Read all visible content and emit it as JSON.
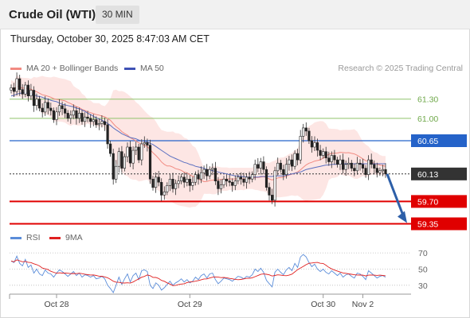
{
  "chart_data": {
    "instrument": "Crude Oil (WTI)",
    "timeframe": "30 MIN",
    "timestamp": "Thursday, October 30, 2025 8:47:03 AM CET",
    "credit": "Research © 2025 Trading Central",
    "legend_main": [
      {
        "name": "MA 20 + Bollinger Bands",
        "color": "#f28b82"
      },
      {
        "name": "MA 50",
        "color": "#3f51b5"
      }
    ],
    "legend_rsi": [
      {
        "name": "RSI",
        "color": "#5b8dd9"
      },
      {
        "name": "9MA",
        "color": "#e02020"
      }
    ],
    "type": "candlestick",
    "price_range": [
      59.22,
      61.62
    ],
    "levels": [
      {
        "value": 61.3,
        "label": "61.30",
        "color": "#8fc36b",
        "kind": "target"
      },
      {
        "value": 61.0,
        "label": "61.00",
        "color": "#8fc36b",
        "kind": "target"
      },
      {
        "value": 60.65,
        "label": "60.65",
        "color": "#2563c9",
        "kind": "pivot"
      },
      {
        "value": 60.13,
        "label": "60.13",
        "color": "#333333",
        "kind": "last"
      },
      {
        "value": 59.7,
        "label": "59.70",
        "color": "#e00000",
        "kind": "support"
      },
      {
        "value": 59.35,
        "label": "59.35",
        "color": "#e00000",
        "kind": "support"
      }
    ],
    "x_ticks": [
      {
        "t": 16,
        "label": "Oct 28"
      },
      {
        "t": 63,
        "label": "Oct 29"
      },
      {
        "t": 110,
        "label": "Oct 30"
      },
      {
        "t": 124,
        "label": "Nov 2"
      }
    ],
    "rsi_ticks": [
      70,
      50,
      30
    ],
    "rsi_range": [
      20,
      75
    ],
    "close": [
      61.48,
      61.42,
      61.62,
      61.45,
      61.38,
      61.52,
      61.35,
      61.44,
      61.2,
      61.3,
      61.16,
      61.1,
      61.25,
      61.16,
      61.12,
      60.98,
      61.1,
      61.2,
      61.15,
      61.08,
      61.0,
      61.05,
      61.12,
      61.0,
      61.08,
      60.95,
      61.02,
      61.0,
      60.95,
      60.98,
      60.9,
      60.92,
      60.95,
      60.9,
      60.6,
      60.45,
      60.05,
      60.25,
      60.48,
      60.22,
      60.4,
      60.55,
      60.3,
      60.5,
      60.55,
      60.35,
      60.6,
      60.62,
      60.58,
      60.05,
      59.92,
      60.08,
      60.0,
      59.8,
      59.85,
      59.95,
      60.05,
      59.9,
      59.98,
      60.02,
      60.08,
      60.0,
      60.05,
      59.95,
      60.0,
      60.12,
      60.05,
      60.15,
      60.2,
      60.1,
      60.2,
      60.22,
      60.02,
      59.9,
      59.96,
      60.05,
      60.02,
      60.0,
      59.95,
      60.02,
      60.08,
      60.05,
      60.0,
      60.08,
      60.05,
      60.12,
      60.28,
      60.22,
      60.32,
      60.2,
      59.92,
      59.8,
      59.72,
      60.18,
      60.3,
      60.2,
      60.12,
      60.28,
      60.35,
      60.25,
      60.45,
      60.35,
      60.72,
      60.85,
      60.8,
      60.65,
      60.55,
      60.62,
      60.5,
      60.42,
      60.48,
      60.38,
      60.32,
      60.42,
      60.35,
      60.28,
      60.35,
      60.2,
      60.28,
      60.3,
      60.22,
      60.18,
      60.3,
      60.28,
      60.22,
      60.12,
      60.35,
      60.28,
      60.22,
      60.15,
      60.18,
      60.2,
      60.13
    ],
    "ma50": [
      61.35,
      61.36,
      61.38,
      61.39,
      61.4,
      61.4,
      61.39,
      61.38,
      61.37,
      61.35,
      61.34,
      61.33,
      61.31,
      61.3,
      61.28,
      61.27,
      61.26,
      61.24,
      61.22,
      61.21,
      61.2,
      61.19,
      61.18,
      61.16,
      61.15,
      61.13,
      61.11,
      61.08,
      61.06,
      61.03,
      61.01,
      60.99,
      60.97,
      60.95,
      60.92,
      60.89,
      60.85,
      60.82,
      60.79,
      60.76,
      60.74,
      60.72,
      60.7,
      60.69,
      60.68,
      60.66,
      60.65,
      60.64,
      60.63,
      60.61,
      60.59,
      60.56,
      60.53,
      60.5,
      60.47,
      60.44,
      60.41,
      60.39,
      60.37,
      60.35,
      60.33,
      60.31,
      60.3,
      60.28,
      60.27,
      60.25,
      60.24,
      60.23,
      60.22,
      60.2,
      60.19,
      60.18,
      60.17,
      60.16,
      60.15,
      60.14,
      60.13,
      60.12,
      60.11,
      60.1,
      60.1,
      60.09,
      60.09,
      60.08,
      60.08,
      60.08,
      60.08,
      60.08,
      60.09,
      60.09,
      60.09,
      60.09,
      60.09,
      60.1,
      60.1,
      60.1,
      60.1,
      60.11,
      60.12,
      60.13,
      60.14,
      60.15,
      60.16,
      60.18,
      60.2,
      60.21,
      60.22,
      60.23,
      60.24,
      60.25,
      60.26,
      60.27,
      60.27,
      60.28,
      60.28,
      60.28,
      60.29,
      60.29,
      60.29,
      60.29,
      60.29,
      60.29,
      60.29,
      60.29,
      60.29,
      60.29,
      60.29,
      60.29,
      60.29,
      60.29,
      60.29,
      60.29,
      60.29
    ],
    "rsi": [
      60,
      58,
      66,
      57,
      54,
      62,
      52,
      55,
      45,
      50,
      44,
      42,
      49,
      45,
      44,
      40,
      45,
      49,
      47,
      44,
      41,
      44,
      47,
      42,
      45,
      40,
      43,
      42,
      40,
      42,
      38,
      39,
      41,
      38,
      30,
      26,
      21,
      30,
      40,
      31,
      38,
      44,
      34,
      42,
      45,
      37,
      48,
      49,
      47,
      30,
      26,
      33,
      30,
      24,
      27,
      31,
      35,
      30,
      33,
      35,
      38,
      34,
      37,
      33,
      35,
      40,
      37,
      42,
      44,
      39,
      44,
      45,
      37,
      32,
      35,
      39,
      38,
      37,
      35,
      38,
      41,
      40,
      38,
      41,
      40,
      43,
      50,
      47,
      51,
      46,
      36,
      32,
      28,
      46,
      50,
      46,
      43,
      49,
      52,
      48,
      57,
      52,
      65,
      68,
      65,
      58,
      53,
      56,
      50,
      47,
      50,
      46,
      44,
      48,
      45,
      42,
      45,
      40,
      43,
      44,
      41,
      39,
      45,
      44,
      41,
      37,
      48,
      45,
      42,
      39,
      41,
      42,
      40
    ]
  }
}
